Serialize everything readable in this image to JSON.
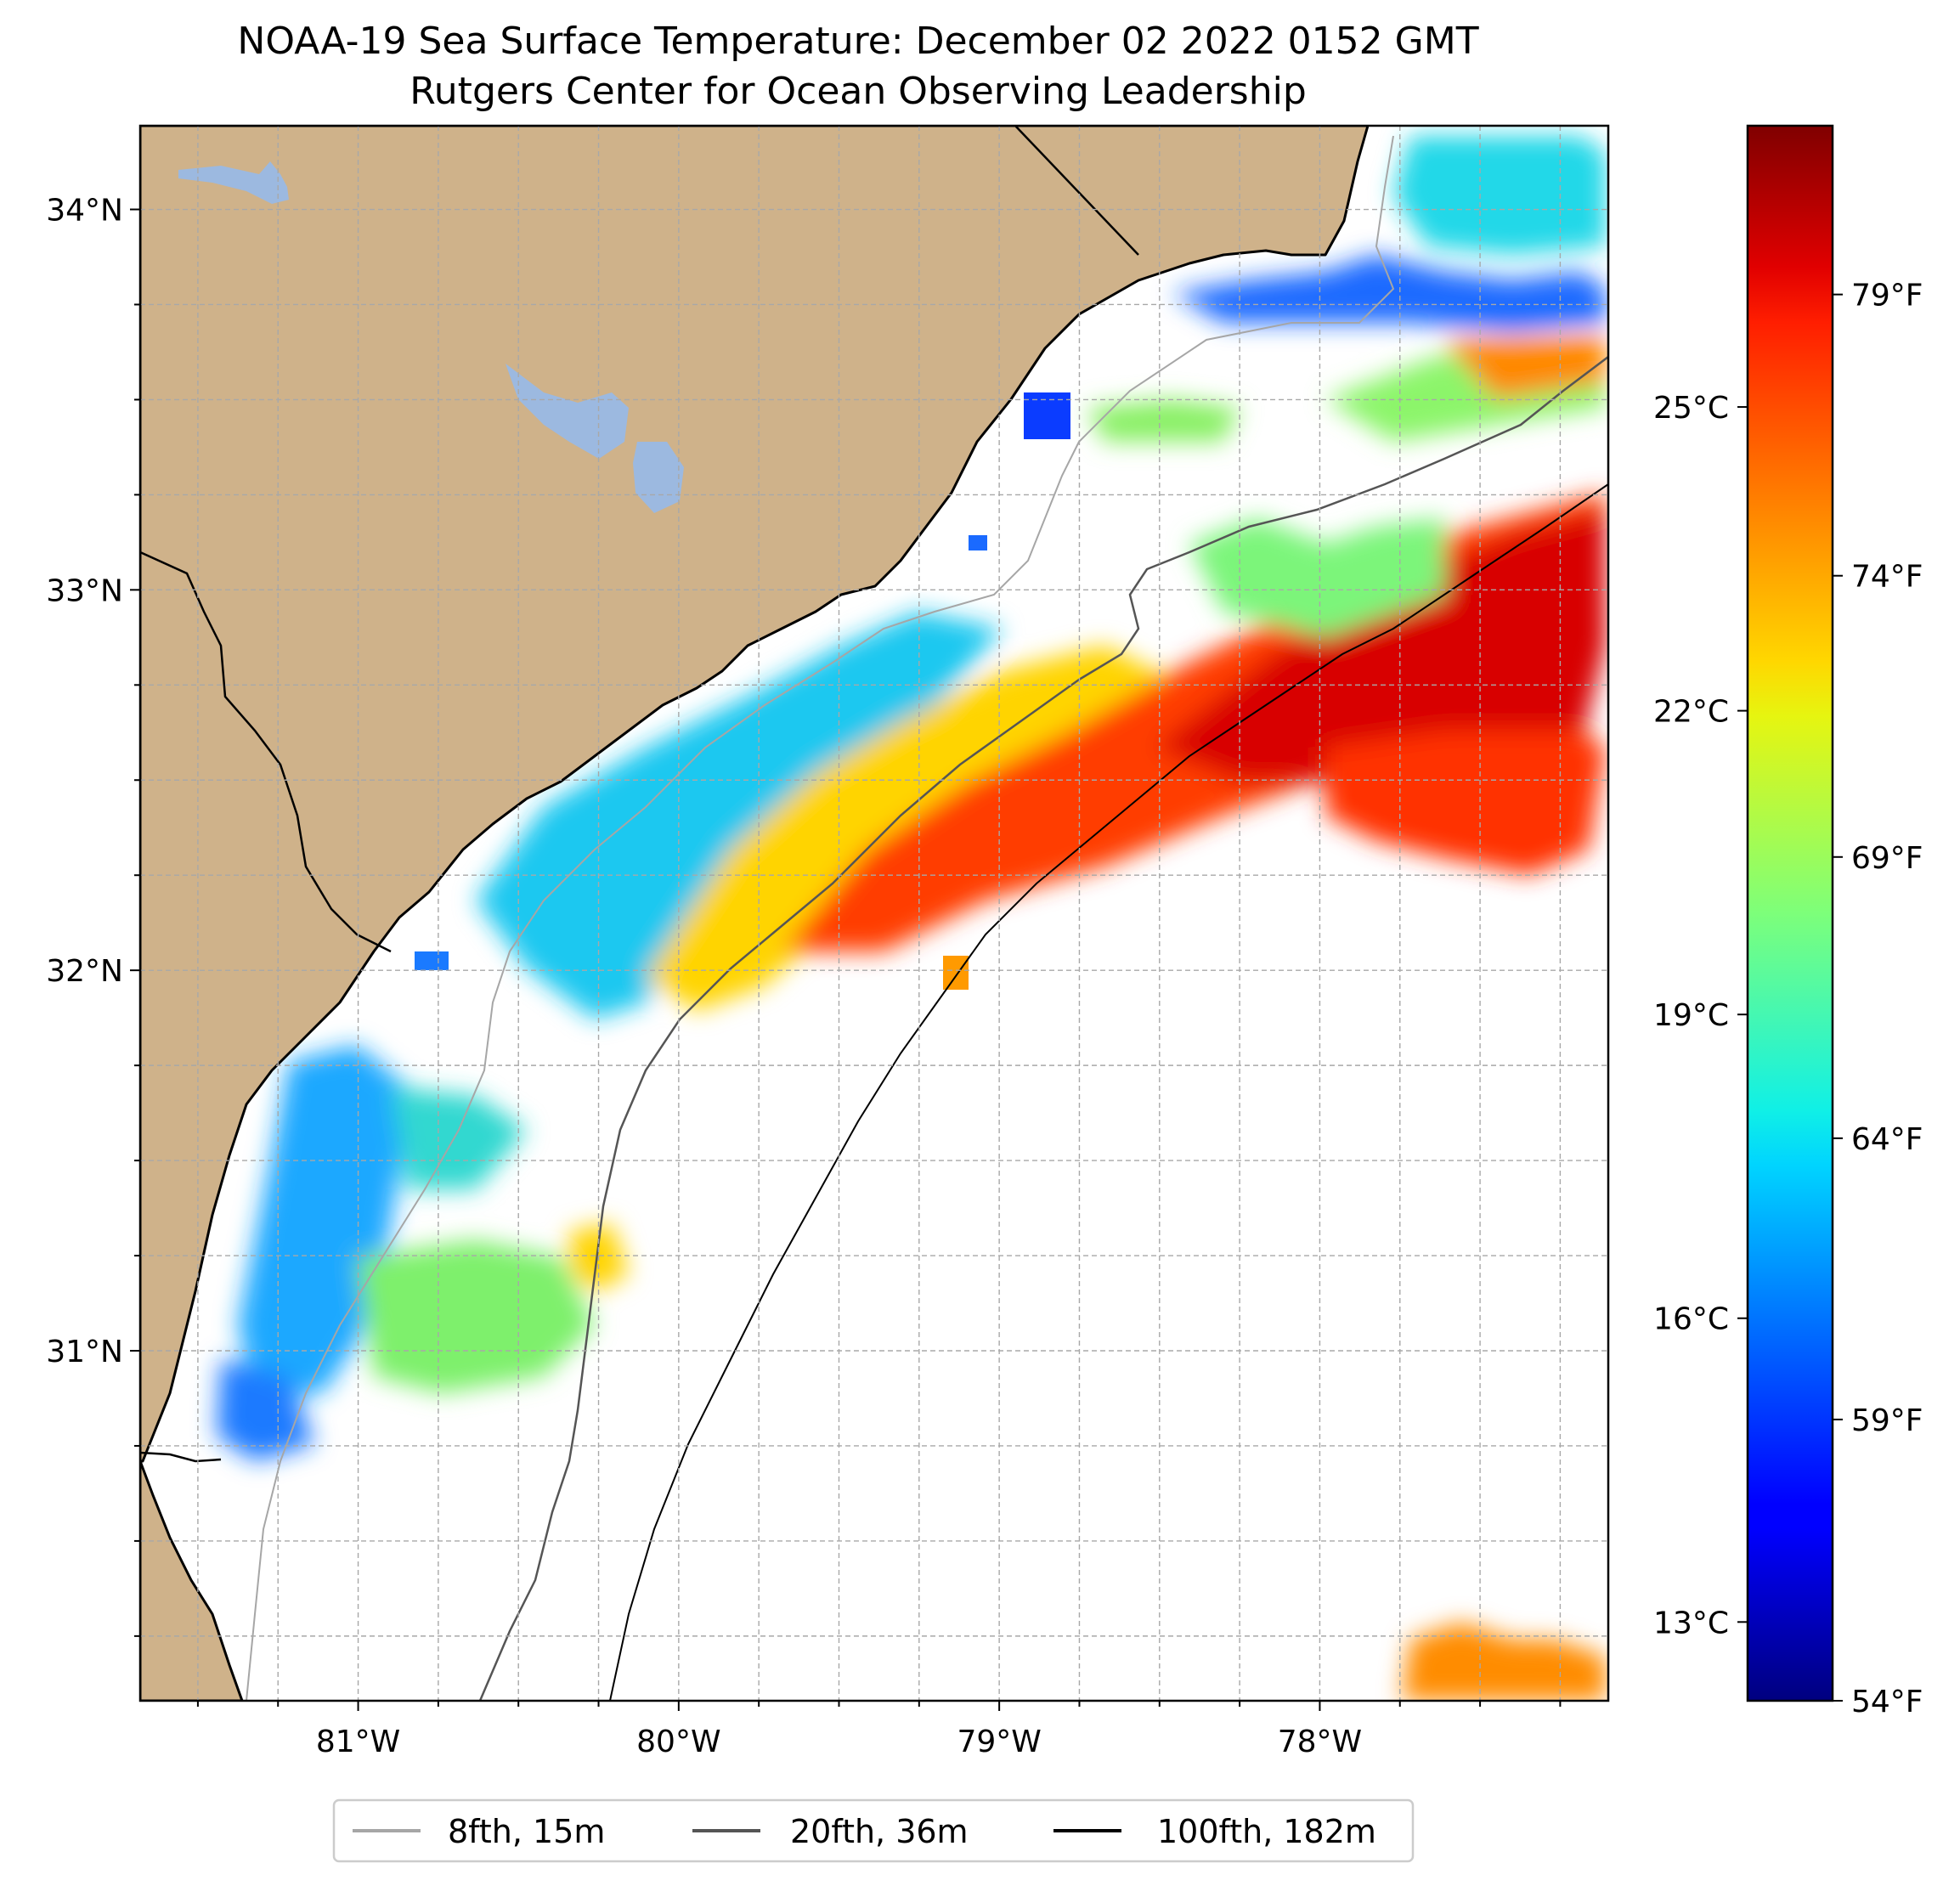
{
  "title": {
    "line1": "NOAA-19 Sea Surface Temperature: December 02 2022 0152 GMT",
    "line2": "Rutgers Center for Ocean Observing Leadership"
  },
  "map": {
    "lon_range": [
      -81.68,
      -77.1
    ],
    "lat_range": [
      30.08,
      34.22
    ],
    "gridlines": true,
    "x_ticks": [
      {
        "value": -81,
        "label": "81°W"
      },
      {
        "value": -80,
        "label": "80°W"
      },
      {
        "value": -79,
        "label": "79°W"
      },
      {
        "value": -78,
        "label": "78°W"
      }
    ],
    "y_ticks": [
      {
        "value": 34,
        "label": "34°N"
      },
      {
        "value": 33,
        "label": "33°N"
      },
      {
        "value": 32,
        "label": "32°N"
      },
      {
        "value": 31,
        "label": "31°N"
      }
    ],
    "colors": {
      "land": "#cfb28a",
      "lakes": "#9cb9e0",
      "coastline": "#000000",
      "grid": "#a8a8a8",
      "isobath_8fth": "#a6a6a6",
      "isobath_20fth": "#555555",
      "isobath_100fth": "#000000"
    }
  },
  "colorbar": {
    "cmap": "jet",
    "celsius_ticks": [
      {
        "value": 25,
        "label": "25°C"
      },
      {
        "value": 22,
        "label": "22°C"
      },
      {
        "value": 19,
        "label": "19°C"
      },
      {
        "value": 16,
        "label": "16°C"
      },
      {
        "value": 13,
        "label": "13°C"
      }
    ],
    "fahrenheit_ticks": [
      {
        "value": 79,
        "label": "79°F"
      },
      {
        "value": 74,
        "label": "74°F"
      },
      {
        "value": 69,
        "label": "69°F"
      },
      {
        "value": 64,
        "label": "64°F"
      },
      {
        "value": 59,
        "label": "59°F"
      },
      {
        "value": 54,
        "label": "54°F"
      }
    ],
    "range_f": [
      54,
      82
    ]
  },
  "legend": {
    "placement": "bottom-center",
    "items": [
      {
        "label": "8fth, 15m",
        "color": "#a6a6a6"
      },
      {
        "label": "20fth, 36m",
        "color": "#555555"
      },
      {
        "label": "100fth, 182m",
        "color": "#000000"
      }
    ]
  }
}
